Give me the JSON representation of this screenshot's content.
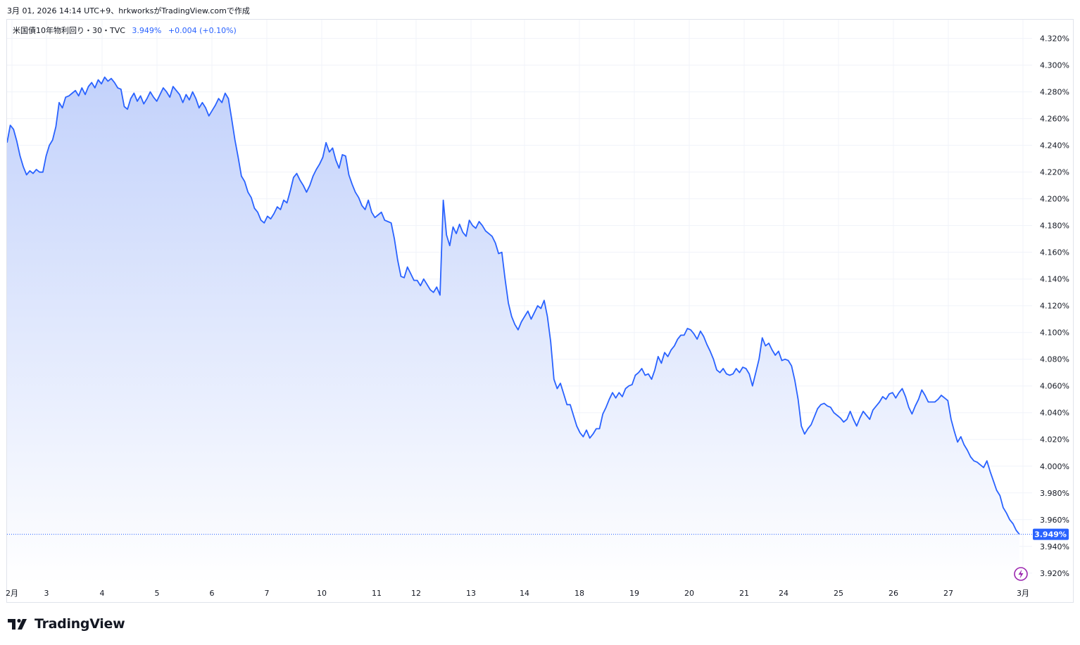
{
  "header": {
    "caption": "3月 01, 2026 14:14 UTC+9、hrkworksがTradingView.comで作成"
  },
  "legend": {
    "symbol": "米国債10年物利回り・30・TVC",
    "value": "3.949%",
    "change": "+0.004 (+0.10%)"
  },
  "brand": {
    "name": "TradingView"
  },
  "colors": {
    "line": "#2962ff",
    "fill_top": "#c3d2fb",
    "fill_bottom": "#ffffff",
    "grid": "#f0f3fa",
    "last_price_bg": "#2962ff"
  },
  "chart_data": {
    "type": "area",
    "title": "米国債10年物利回り・30・TVC",
    "ylabel": "",
    "ylim": [
      3.912,
      4.334
    ],
    "y_ticks": [
      "4.320%",
      "4.300%",
      "4.280%",
      "4.260%",
      "4.240%",
      "4.220%",
      "4.200%",
      "4.180%",
      "4.160%",
      "4.140%",
      "4.120%",
      "4.100%",
      "4.080%",
      "4.060%",
      "4.040%",
      "4.020%",
      "4.000%",
      "3.980%",
      "3.960%",
      "3.940%",
      "3.920%"
    ],
    "x_ticks": [
      "2月",
      "3",
      "4",
      "5",
      "6",
      "7",
      "10",
      "11",
      "12",
      "13",
      "14",
      "18",
      "19",
      "20",
      "21",
      "24",
      "25",
      "26",
      "27",
      "3月"
    ],
    "last_price": "3.949%",
    "grid": true,
    "series": [
      {
        "values": [
          4.242,
          4.255,
          4.252,
          4.243,
          4.232,
          4.224,
          4.218,
          4.221,
          4.219,
          4.222,
          4.22,
          4.22,
          4.232,
          4.24,
          4.244,
          4.254,
          4.272,
          4.268,
          4.276,
          4.277,
          4.279,
          4.281,
          4.277,
          4.283,
          4.278,
          4.284,
          4.287,
          4.283,
          4.289,
          4.286,
          4.291,
          4.288,
          4.29,
          4.287,
          4.283,
          4.282,
          4.269,
          4.267,
          4.275,
          4.279,
          4.273,
          4.277,
          4.271,
          4.275,
          4.28,
          4.276,
          4.273,
          4.278,
          4.283,
          4.28,
          4.276,
          4.284,
          4.281,
          4.278,
          4.272,
          4.278,
          4.274,
          4.28,
          4.275,
          4.268,
          4.272,
          4.268,
          4.262,
          4.266,
          4.27,
          4.275,
          4.272,
          4.279,
          4.275,
          4.26,
          4.244,
          4.231,
          4.217,
          4.213,
          4.205,
          4.201,
          4.193,
          4.19,
          4.184,
          4.182,
          4.187,
          4.185,
          4.189,
          4.194,
          4.192,
          4.199,
          4.197,
          4.206,
          4.216,
          4.219,
          4.214,
          4.21,
          4.205,
          4.21,
          4.217,
          4.222,
          4.226,
          4.231,
          4.242,
          4.235,
          4.238,
          4.229,
          4.223,
          4.233,
          4.232,
          4.218,
          4.211,
          4.205,
          4.201,
          4.195,
          4.192,
          4.199,
          4.19,
          4.186,
          4.188,
          4.19,
          4.184,
          4.183,
          4.182,
          4.17,
          4.154,
          4.142,
          4.141,
          4.149,
          4.144,
          4.139,
          4.139,
          4.135,
          4.14,
          4.136,
          4.132,
          4.13,
          4.134,
          4.128,
          4.199,
          4.173,
          4.165,
          4.179,
          4.174,
          4.181,
          4.175,
          4.172,
          4.184,
          4.18,
          4.178,
          4.183,
          4.18,
          4.176,
          4.174,
          4.172,
          4.167,
          4.159,
          4.16,
          4.14,
          4.122,
          4.112,
          4.106,
          4.102,
          4.108,
          4.112,
          4.116,
          4.11,
          4.115,
          4.12,
          4.118,
          4.124,
          4.112,
          4.093,
          4.065,
          4.058,
          4.062,
          4.054,
          4.046,
          4.046,
          4.038,
          4.03,
          4.025,
          4.022,
          4.027,
          4.021,
          4.024,
          4.028,
          4.028,
          4.039,
          4.044,
          4.05,
          4.055,
          4.051,
          4.055,
          4.052,
          4.058,
          4.06,
          4.061,
          4.068,
          4.07,
          4.073,
          4.068,
          4.069,
          4.065,
          4.072,
          4.082,
          4.077,
          4.085,
          4.082,
          4.087,
          4.09,
          4.095,
          4.098,
          4.098,
          4.103,
          4.102,
          4.099,
          4.095,
          4.101,
          4.097,
          4.091,
          4.086,
          4.08,
          4.072,
          4.07,
          4.073,
          4.069,
          4.068,
          4.069,
          4.073,
          4.07,
          4.074,
          4.073,
          4.069,
          4.06,
          4.07,
          4.08,
          4.096,
          4.09,
          4.092,
          4.087,
          4.083,
          4.086,
          4.079,
          4.08,
          4.079,
          4.075,
          4.064,
          4.05,
          4.03,
          4.024,
          4.028,
          4.031,
          4.037,
          4.043,
          4.046,
          4.047,
          4.045,
          4.044,
          4.04,
          4.038,
          4.036,
          4.033,
          4.035,
          4.041,
          4.035,
          4.03,
          4.036,
          4.041,
          4.038,
          4.035,
          4.042,
          4.045,
          4.048,
          4.052,
          4.05,
          4.054,
          4.055,
          4.051,
          4.055,
          4.058,
          4.052,
          4.044,
          4.039,
          4.045,
          4.05,
          4.057,
          4.053,
          4.048,
          4.048,
          4.048,
          4.05,
          4.053,
          4.051,
          4.049,
          4.035,
          4.026,
          4.018,
          4.022,
          4.016,
          4.012,
          4.007,
          4.004,
          4.003,
          4.001,
          3.999,
          4.004,
          3.996,
          3.989,
          3.982,
          3.978,
          3.969,
          3.965,
          3.96,
          3.957,
          3.952,
          3.949
        ]
      }
    ]
  }
}
